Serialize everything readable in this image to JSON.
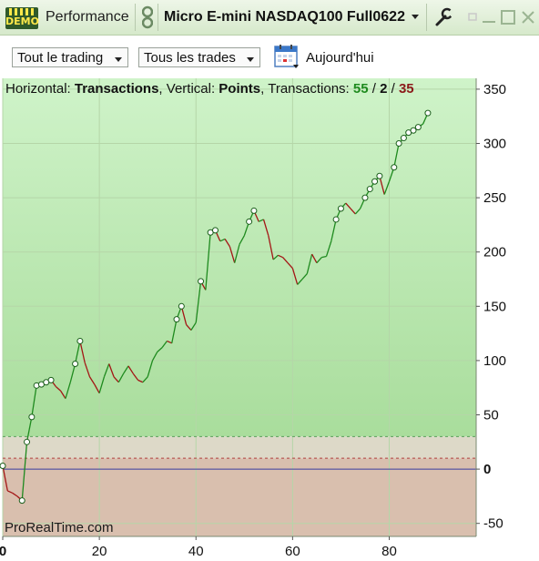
{
  "titlebar": {
    "demo_label": "DEMO",
    "app_title": "Performance",
    "instrument": "Micro E-mini NASDAQ100 Full0622"
  },
  "toolbar": {
    "trading_filter": "Tout le trading",
    "trades_filter": "Tous les trades",
    "period": "Aujourd'hui"
  },
  "info": {
    "horizontal_label": "Horizontal:",
    "horizontal_value": "Transactions",
    "vertical_label": "Vertical:",
    "vertical_value": "Points",
    "transactions_label": "Transactions:",
    "winners": "55",
    "neutral": "2",
    "losers": "35",
    "sep": "/"
  },
  "watermark": "ProRealTime.com",
  "colors": {
    "profit_zone": "#c7eec0",
    "loss_zone": "#d9bfae",
    "up_line": "#1e8a1e",
    "down_line": "#a31515",
    "zero_line": "#3c3ca0"
  },
  "chart_data": {
    "type": "line",
    "xlabel": "",
    "ylabel": "",
    "xlim": [
      0,
      98
    ],
    "ylim": [
      -62,
      360
    ],
    "x_ticks": [
      0,
      20,
      40,
      60,
      80
    ],
    "y_ticks": [
      350,
      300,
      250,
      200,
      150,
      100,
      50,
      0,
      -50
    ],
    "reference_lines": {
      "zero": 0,
      "upper_dashed": 30,
      "lower_dashed": 10
    },
    "series": [
      {
        "values": [
          3,
          -20,
          -22,
          -25,
          -29,
          25,
          48,
          77,
          78,
          80,
          82,
          76,
          72,
          65,
          80,
          97,
          118,
          98,
          85,
          78,
          70,
          85,
          97,
          85,
          80,
          88,
          95,
          88,
          82,
          80,
          85,
          100,
          108,
          112,
          118,
          116,
          138,
          150,
          133,
          128,
          135,
          173,
          165,
          218,
          220,
          210,
          212,
          205,
          190,
          207,
          215,
          228,
          238,
          228,
          230,
          215,
          193,
          197,
          195,
          190,
          185,
          170,
          175,
          180,
          198,
          190,
          195,
          196,
          210,
          230,
          240,
          245,
          240,
          235,
          240,
          250,
          258,
          265,
          270,
          253,
          265,
          278,
          300,
          305,
          310,
          312,
          315,
          318,
          328
        ],
        "markers": [
          0,
          4,
          5,
          6,
          7,
          8,
          9,
          10,
          15,
          16,
          36,
          37,
          41,
          43,
          44,
          51,
          52,
          69,
          70,
          75,
          76,
          77,
          78,
          81,
          82,
          83,
          84,
          85,
          86,
          88
        ]
      }
    ]
  }
}
